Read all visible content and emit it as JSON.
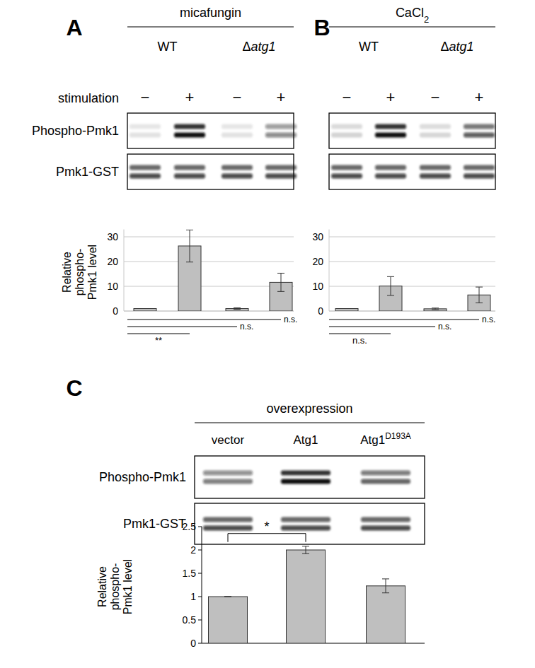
{
  "panels": [
    {
      "label": "A",
      "header": [
        {
          "text": "micafungin"
        }
      ],
      "groups": [
        [
          {
            "text": "WT"
          }
        ],
        [
          {
            "text": "Δ"
          },
          {
            "text": "atg1",
            "style": "italic"
          }
        ]
      ],
      "row_label": "stimulation",
      "conditions": [
        "−",
        "+",
        "−",
        "+"
      ],
      "blot_rows": [
        "Phospho-Pmk1",
        "Pmk1-GST"
      ]
    },
    {
      "label": "B",
      "header": [
        {
          "text": "CaCl"
        },
        {
          "text": "2",
          "style": "sub"
        }
      ],
      "groups": [
        [
          {
            "text": "WT"
          }
        ],
        [
          {
            "text": "Δ"
          },
          {
            "text": "atg1",
            "style": "italic"
          }
        ]
      ],
      "conditions": [
        "−",
        "+",
        "−",
        "+"
      ]
    },
    {
      "label": "C",
      "header": [
        {
          "text": "overexpression"
        }
      ],
      "lanes": [
        [
          {
            "text": "vector"
          }
        ],
        [
          {
            "text": "Atg1"
          }
        ],
        [
          {
            "text": "Atg1"
          },
          {
            "text": "D193A",
            "style": "sup"
          }
        ]
      ],
      "blot_rows": [
        "Phospho-Pmk1",
        "Pmk1-GST"
      ]
    }
  ],
  "chart_data": [
    {
      "type": "bar",
      "categories": [
        null,
        null,
        null,
        null
      ],
      "values": [
        1,
        26.3,
        1.0,
        11.6
      ],
      "errors": [
        0,
        6.5,
        0.3,
        3.7
      ],
      "color": "#bfbfbf",
      "ylim": [
        0,
        33
      ],
      "yticks": [
        0,
        10,
        20,
        30
      ],
      "grid": true,
      "ylabel": [
        "Relative",
        "phospho-",
        "Pmk1 level"
      ],
      "comparisons": [
        {
          "from": 0,
          "to": 1,
          "label": "**"
        },
        {
          "from": 0,
          "to": 2,
          "label": "n.s."
        },
        {
          "from": 0,
          "to": 3,
          "label": "n.s."
        }
      ]
    },
    {
      "type": "bar",
      "categories": [
        null,
        null,
        null,
        null
      ],
      "values": [
        1,
        10.1,
        0.9,
        6.5
      ],
      "errors": [
        0,
        3.8,
        0.3,
        3.2
      ],
      "color": "#bfbfbf",
      "ylim": [
        0,
        33
      ],
      "yticks": [
        0,
        10,
        20,
        30
      ],
      "grid": true,
      "comparisons": [
        {
          "from": 0,
          "to": 1,
          "label": "n.s."
        },
        {
          "from": 0,
          "to": 2,
          "label": "n.s."
        },
        {
          "from": 0,
          "to": 3,
          "label": "n.s."
        }
      ]
    },
    {
      "type": "bar",
      "categories": [
        null,
        null,
        null
      ],
      "values": [
        1,
        2.0,
        1.23
      ],
      "errors": [
        0,
        0.08,
        0.15
      ],
      "color": "#bfbfbf",
      "ylim": [
        0,
        2.5
      ],
      "yticks": [
        0,
        0.5,
        1,
        1.5,
        2,
        2.5
      ],
      "grid": false,
      "ylabel": [
        "Relative",
        "phospho-",
        "Pmk1 level"
      ],
      "comparisons": [
        {
          "from": 0,
          "to": 1,
          "label": "*"
        }
      ]
    }
  ]
}
